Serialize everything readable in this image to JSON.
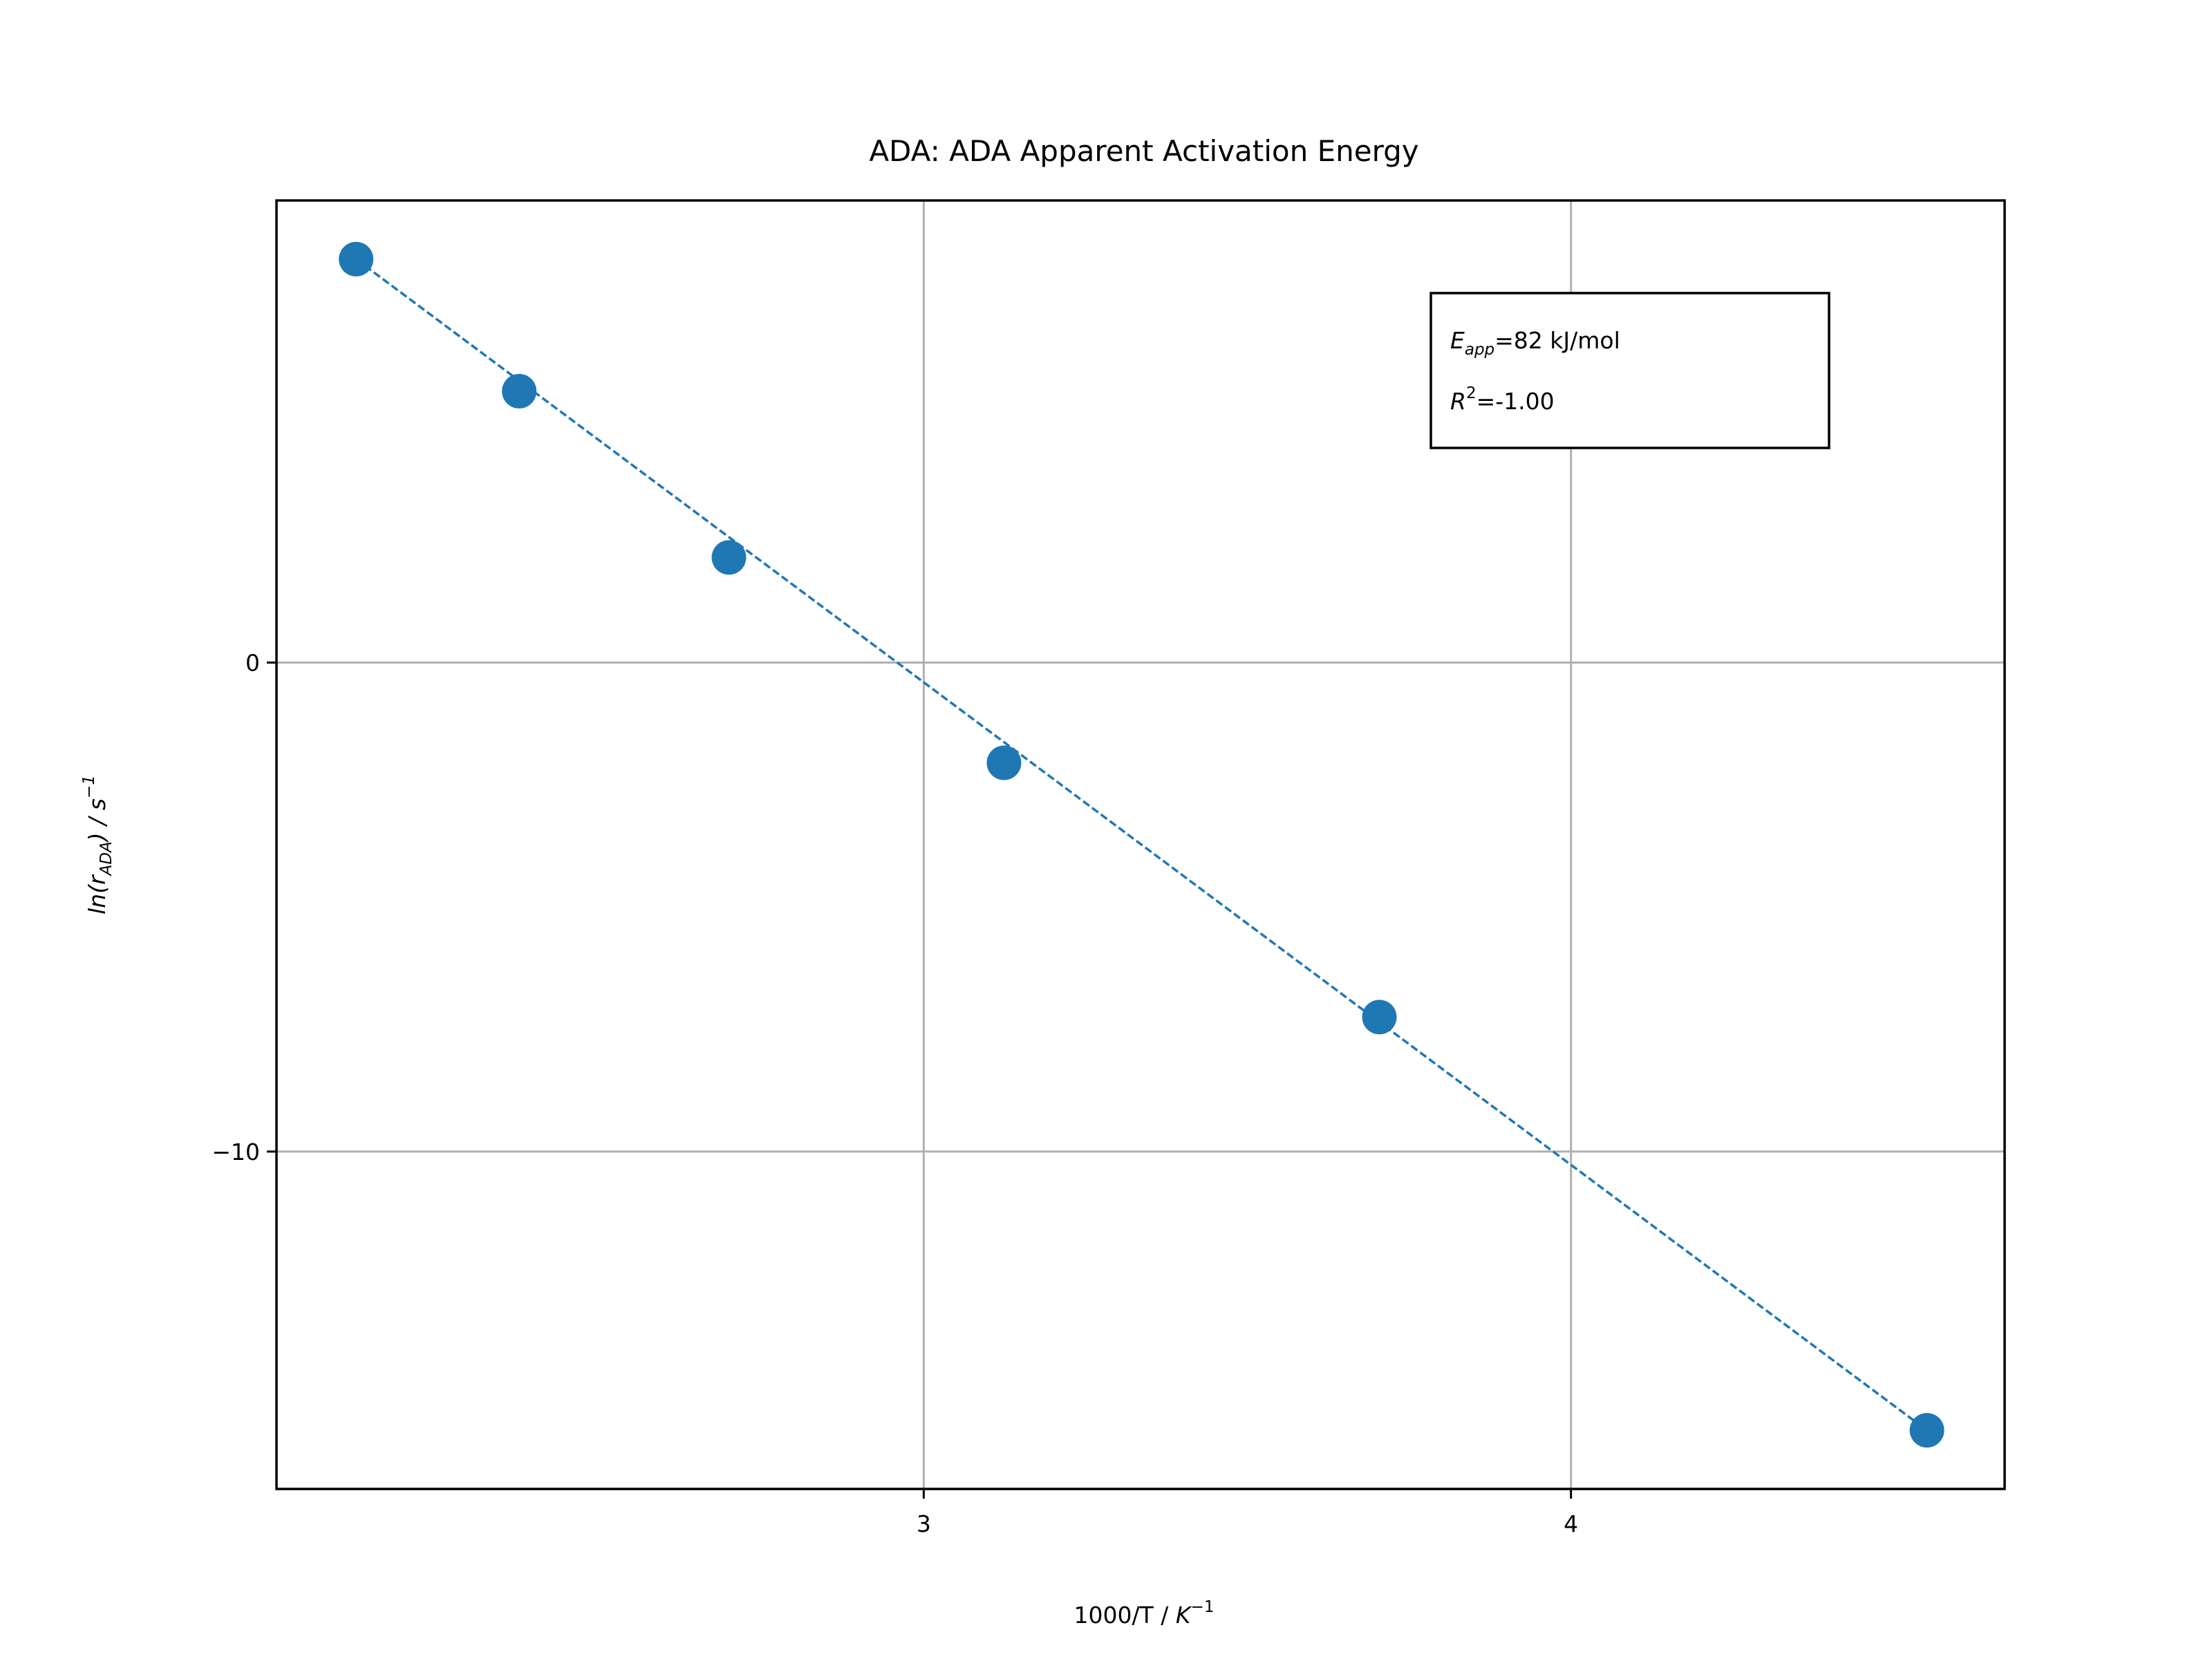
{
  "chart_data": {
    "type": "scatter",
    "title": "ADA: ADA Apparent Activation Energy",
    "xlabel": {
      "base": "1000/T / ",
      "var": "K",
      "sup": "−1"
    },
    "ylabel": {
      "pre": "ln(r",
      "sub": "ADA",
      "post": ") / s",
      "sup": "−1"
    },
    "xlim": [
      2.0,
      4.67
    ],
    "ylim": [
      -16.9,
      9.45
    ],
    "xticks": [
      3,
      4
    ],
    "xtick_labels": [
      "3",
      "4"
    ],
    "yticks": [
      0,
      -10
    ],
    "ytick_labels": [
      "0",
      "−10"
    ],
    "grid": true,
    "series": [
      {
        "x": [
          2.123,
          2.375,
          2.699,
          3.124,
          3.704,
          4.55
        ],
        "y": [
          8.25,
          5.55,
          2.15,
          -2.05,
          -7.25,
          -15.7
        ],
        "marker": "circle",
        "color": "#1f77b4"
      }
    ],
    "fit_line": {
      "x": [
        2.123,
        4.55
      ],
      "y": [
        8.25,
        -15.7
      ],
      "style": "dashed",
      "color": "#1f77b4"
    },
    "annotation": {
      "line1": {
        "var": "E",
        "sub": "app",
        "text": "=82 kJ/mol"
      },
      "line2": {
        "var": "R",
        "sup": "2",
        "text": "=-1.00"
      },
      "placement": "top-right"
    }
  }
}
